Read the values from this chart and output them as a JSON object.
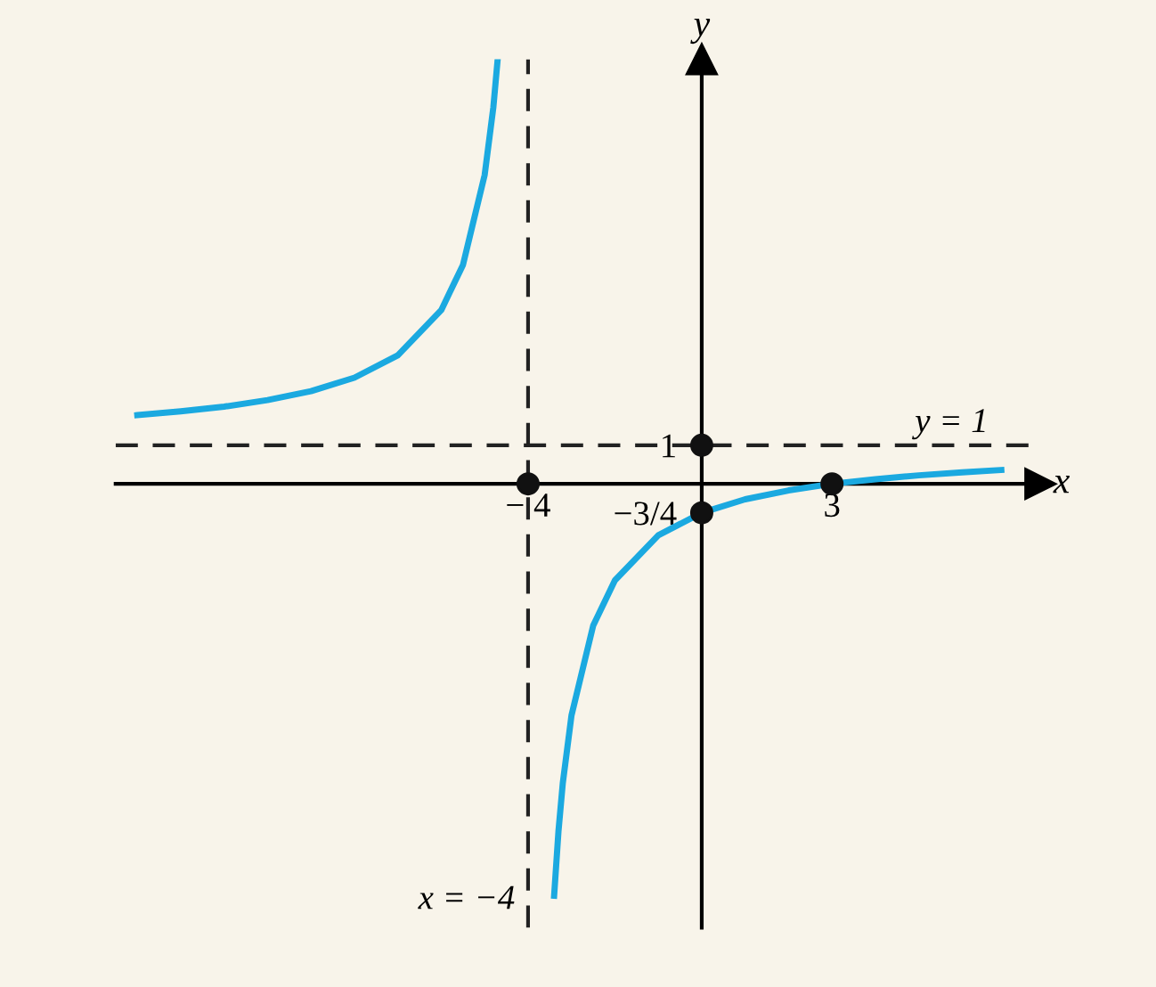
{
  "chart_data": {
    "type": "line",
    "xlabel": "x",
    "ylabel": "y",
    "xlim": [
      -13.5,
      7.8
    ],
    "ylim": [
      -11.5,
      11
    ],
    "xticks": [
      {
        "value": -4,
        "label": "− 4"
      },
      3
    ],
    "yticks": [
      1,
      {
        "value": -0.75,
        "label": "−3/4"
      }
    ],
    "grid": false,
    "legend": false,
    "marker": "none",
    "line_style": "solid",
    "series": [
      {
        "color": "#1ba9e0",
        "x": [
          -13,
          -12,
          -11,
          -10,
          -9,
          -8,
          -7,
          -6,
          -5.5,
          -5,
          -4.8,
          -4.7
        ],
        "values": [
          1.78,
          1.88,
          2,
          2.17,
          2.4,
          2.75,
          3.33,
          4.5,
          5.67,
          8,
          9.75,
          11
        ]
      },
      {
        "color": "#1ba9e0",
        "x": [
          -3.4,
          -3.3,
          -3.2,
          -3,
          -2.5,
          -2,
          -1,
          0,
          1,
          2,
          3,
          4,
          5,
          6,
          6.9
        ],
        "values": [
          -10.67,
          -9,
          -7.75,
          -6,
          -3.67,
          -2.5,
          -1.33,
          -0.75,
          -0.4,
          -0.17,
          0,
          0.12,
          0.22,
          0.3,
          0.36
        ]
      },
      {
        "type": "scatter",
        "color": "#111111",
        "marker": "circle",
        "x": [
          -4,
          0,
          0,
          3
        ],
        "values": [
          0,
          1,
          -0.75,
          0
        ]
      }
    ],
    "ref_lines": [
      {
        "axis": "x",
        "value": -4,
        "label": "x = −4",
        "color": "#222222",
        "line_style": "dashed"
      },
      {
        "axis": "y",
        "value": 1,
        "label": "y = 1",
        "color": "#222222",
        "line_style": "dashed"
      }
    ]
  }
}
